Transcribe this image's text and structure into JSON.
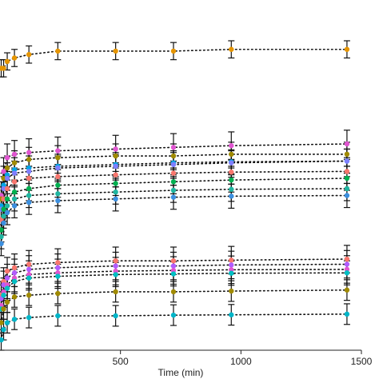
{
  "chart_data": {
    "type": "scatter",
    "xlabel": "Time (min)",
    "ylabel": "",
    "xlim": [
      0,
      1500
    ],
    "ylim": [
      0,
      1
    ],
    "grid": false,
    "x_ticks": [
      500,
      1000,
      1500
    ],
    "x": [
      5,
      15,
      30,
      60,
      120,
      240,
      480,
      720,
      960,
      1440
    ],
    "series": [
      {
        "color": "#e69500",
        "values": [
          0.82,
          0.82,
          0.84,
          0.85,
          0.86,
          0.87,
          0.87,
          0.87,
          0.875,
          0.875
        ],
        "err": 0.025
      },
      {
        "color": "#e055d0",
        "values": [
          0.45,
          0.52,
          0.56,
          0.57,
          0.575,
          0.58,
          0.585,
          0.59,
          0.595,
          0.6
        ],
        "err": 0.04
      },
      {
        "color": "#a08a00",
        "values": [
          0.44,
          0.5,
          0.53,
          0.545,
          0.555,
          0.56,
          0.565,
          0.565,
          0.57,
          0.57
        ],
        "err": 0.035
      },
      {
        "color": "#00a5e5",
        "values": [
          0.42,
          0.48,
          0.51,
          0.525,
          0.53,
          0.535,
          0.54,
          0.545,
          0.548,
          0.55
        ],
        "err": 0.035
      },
      {
        "color": "#7f7fff",
        "values": [
          0.41,
          0.47,
          0.5,
          0.515,
          0.52,
          0.53,
          0.535,
          0.54,
          0.545,
          0.55
        ],
        "err": 0.035
      },
      {
        "color": "#f8766d",
        "values": [
          0.38,
          0.44,
          0.47,
          0.49,
          0.5,
          0.505,
          0.51,
          0.515,
          0.518,
          0.52
        ],
        "err": 0.035
      },
      {
        "color": "#00b050",
        "values": [
          0.35,
          0.41,
          0.44,
          0.46,
          0.47,
          0.48,
          0.485,
          0.49,
          0.495,
          0.5
        ],
        "err": 0.035
      },
      {
        "color": "#1fb5a0",
        "values": [
          0.33,
          0.39,
          0.42,
          0.44,
          0.45,
          0.455,
          0.46,
          0.465,
          0.468,
          0.47
        ],
        "err": 0.035
      },
      {
        "color": "#3c8fdf",
        "values": [
          0.31,
          0.37,
          0.4,
          0.42,
          0.43,
          0.435,
          0.44,
          0.445,
          0.448,
          0.45
        ],
        "err": 0.035
      },
      {
        "color": "#f8766d",
        "values": [
          0.16,
          0.2,
          0.23,
          0.24,
          0.25,
          0.255,
          0.26,
          0.26,
          0.262,
          0.265
        ],
        "err": 0.04
      },
      {
        "color": "#b15cff",
        "values": [
          0.15,
          0.19,
          0.21,
          0.225,
          0.235,
          0.24,
          0.245,
          0.245,
          0.248,
          0.25
        ],
        "err": 0.04
      },
      {
        "color": "#e055d0",
        "values": [
          0.13,
          0.17,
          0.19,
          0.21,
          0.22,
          0.225,
          0.23,
          0.232,
          0.234,
          0.235
        ],
        "err": 0.04
      },
      {
        "color": "#00bfc4",
        "values": [
          0.12,
          0.16,
          0.18,
          0.2,
          0.21,
          0.215,
          0.22,
          0.222,
          0.224,
          0.225
        ],
        "err": 0.035
      },
      {
        "color": "#a08a00",
        "values": [
          0.08,
          0.12,
          0.14,
          0.155,
          0.16,
          0.165,
          0.17,
          0.17,
          0.172,
          0.175
        ],
        "err": 0.03
      },
      {
        "color": "#00b5c8",
        "values": [
          0.03,
          0.06,
          0.08,
          0.09,
          0.095,
          0.1,
          0.1,
          0.102,
          0.103,
          0.105
        ],
        "err": 0.03
      }
    ]
  }
}
